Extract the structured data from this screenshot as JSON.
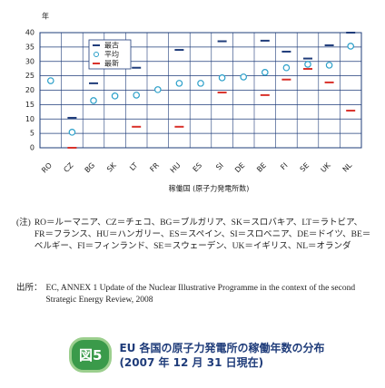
{
  "chart_data": {
    "type": "range-dot",
    "y_label": "年",
    "x_label": "稼働国 (原子力発電所数)",
    "categories": [
      "RO",
      "CZ",
      "BG",
      "SK",
      "LT",
      "FR",
      "HU",
      "ES",
      "SI",
      "DE",
      "BE",
      "FI",
      "SE",
      "UK",
      "NL"
    ],
    "series": [
      {
        "name": "最古",
        "color": "#1f3c7a",
        "values": [
          null,
          10.4,
          22.4,
          null,
          27.8,
          null,
          34,
          null,
          37,
          null,
          37.2,
          33.4,
          31,
          35.6,
          40
        ]
      },
      {
        "name": "平均",
        "color": "#2a9fc9",
        "values": [
          23.3,
          5.4,
          16.4,
          18,
          18.3,
          20.2,
          22.4,
          22.4,
          24.3,
          24.6,
          26.2,
          27.8,
          29,
          28.7,
          35.3
        ]
      },
      {
        "name": "最新",
        "color": "#d9322b",
        "values": [
          null,
          0,
          null,
          null,
          7.3,
          null,
          7.3,
          null,
          19.2,
          null,
          18.3,
          23.7,
          27.4,
          22.7,
          12.9
        ]
      }
    ],
    "ylim": [
      0,
      40
    ],
    "yticks": [
      0,
      5,
      10,
      15,
      20,
      25,
      30,
      35,
      40
    ],
    "grid": true
  },
  "notes": {
    "label": "(注)",
    "text": "RO＝ルーマニア、CZ＝チェコ、BG＝ブルガリア、SK＝スロバキア、LT＝ラトビア、FR＝フランス、HU＝ハンガリー、ES＝スペイン、SI＝スロベニア、DE＝ドイツ、BE＝ベルギー、FI＝フィンランド、SE＝スウェーデン、UK＝イギリス、NL＝オランダ"
  },
  "source": {
    "label": "出所：",
    "text": "EC, ANNEX 1 Update of the Nuclear Illustrative Programme in the context of the second Strategic Energy Review, 2008"
  },
  "figure": {
    "number": "図5",
    "title": "EU 各国の原子力発電所の稼働年数の分布(2007 年 12 月 31 日現在)"
  }
}
